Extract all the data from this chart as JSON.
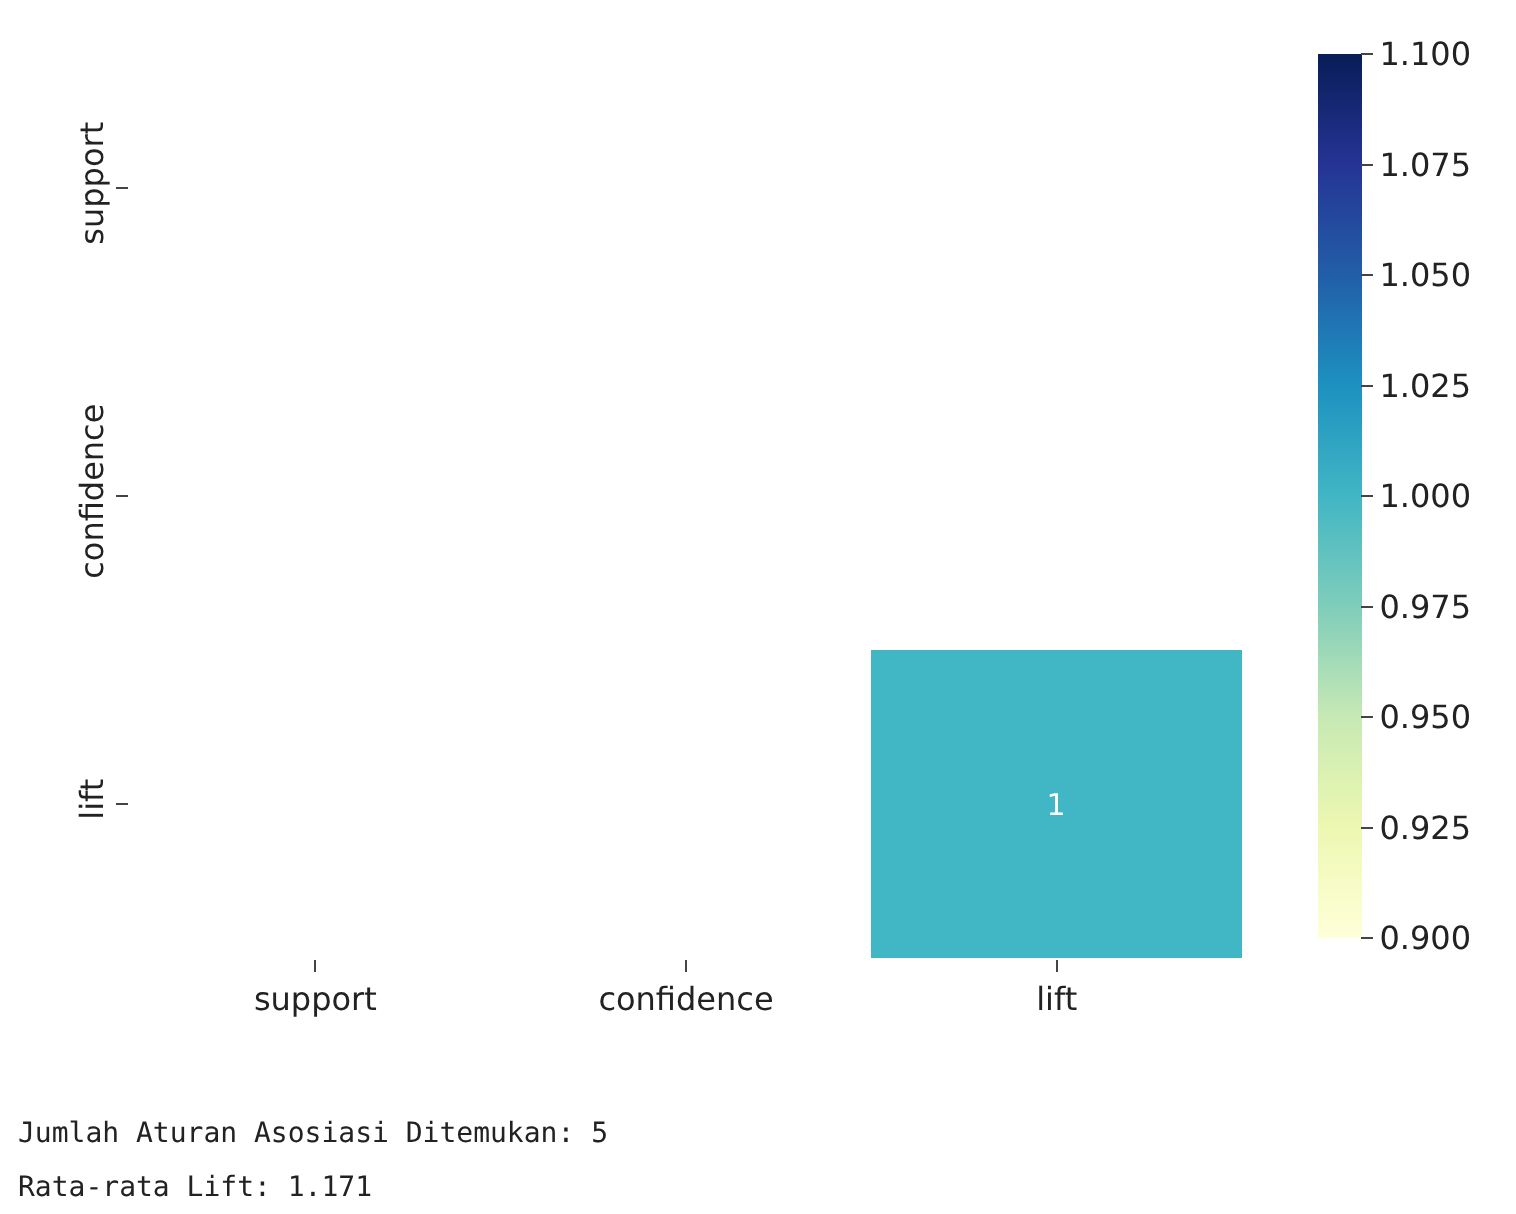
{
  "chart_data": {
    "type": "heatmap",
    "categories": [
      "support",
      "confidence",
      "lift"
    ],
    "y_categories": [
      "support",
      "confidence",
      "lift"
    ],
    "cells": [
      [
        null,
        null,
        null
      ],
      [
        null,
        null,
        null
      ],
      [
        null,
        null,
        1
      ]
    ],
    "data_labels": true,
    "clim": [
      0.9,
      1.1
    ],
    "cticks": [
      {
        "value": 0.9,
        "label": "0.900"
      },
      0.925,
      {
        "value": 0.95,
        "label": "0.950"
      },
      0.975,
      {
        "value": 1.0,
        "label": "1.000"
      },
      1.025,
      {
        "value": 1.05,
        "label": "1.050"
      },
      1.075,
      {
        "value": 1.1,
        "label": "1.100"
      }
    ],
    "annotations": [
      "Jumlah Aturan Asosiasi Ditemukan: 5",
      "Rata-rata Lift: 1.171"
    ]
  }
}
